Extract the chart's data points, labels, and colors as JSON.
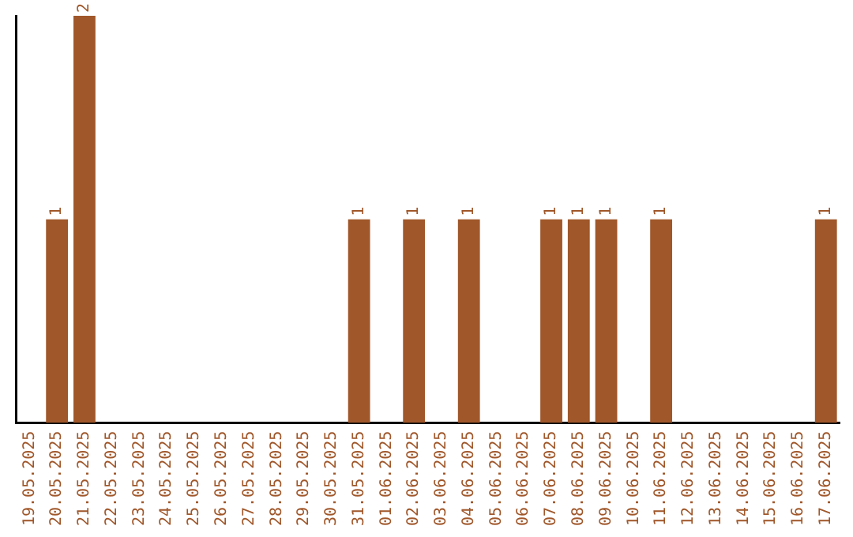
{
  "chart_data": {
    "type": "bar",
    "categories": [
      "19.05.2025",
      "20.05.2025",
      "21.05.2025",
      "22.05.2025",
      "23.05.2025",
      "24.05.2025",
      "25.05.2025",
      "26.05.2025",
      "27.05.2025",
      "28.05.2025",
      "29.05.2025",
      "30.05.2025",
      "31.05.2025",
      "01.06.2025",
      "02.06.2025",
      "03.06.2025",
      "04.06.2025",
      "05.06.2025",
      "06.06.2025",
      "07.06.2025",
      "08.06.2025",
      "09.06.2025",
      "10.06.2025",
      "11.06.2025",
      "12.06.2025",
      "13.06.2025",
      "14.06.2025",
      "15.06.2025",
      "16.06.2025",
      "17.06.2025"
    ],
    "values": [
      0,
      1,
      2,
      0,
      0,
      0,
      0,
      0,
      0,
      0,
      0,
      0,
      1,
      0,
      1,
      0,
      1,
      0,
      0,
      1,
      1,
      1,
      0,
      1,
      0,
      0,
      0,
      0,
      0,
      1
    ],
    "value_labels": [
      null,
      "1",
      "2",
      null,
      null,
      null,
      null,
      null,
      null,
      null,
      null,
      null,
      "1",
      null,
      "1",
      null,
      "1",
      null,
      null,
      "1",
      "1",
      "1",
      null,
      "1",
      null,
      null,
      null,
      null,
      null,
      "1"
    ],
    "color": "#a0572a",
    "tick_labels": "x",
    "grid": false,
    "legend": false
  }
}
